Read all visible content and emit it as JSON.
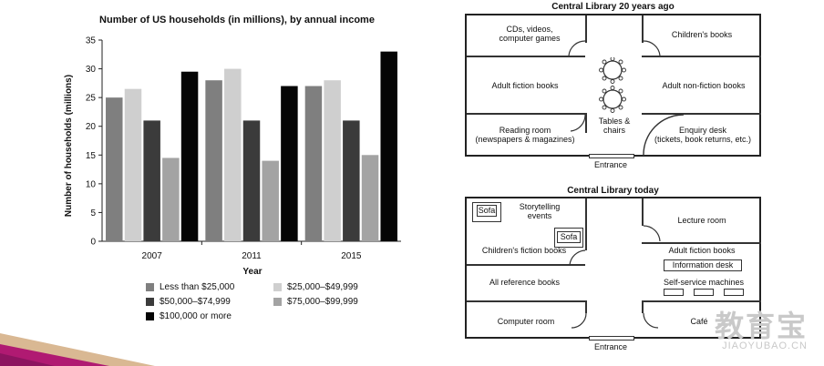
{
  "chart_data": {
    "type": "bar",
    "title": "Number of US households (in millions), by annual income",
    "xlabel": "Year",
    "ylabel": "Number of households (millions)",
    "ylim": [
      0,
      35
    ],
    "yticks": [
      0,
      5,
      10,
      15,
      20,
      25,
      30,
      35
    ],
    "categories": [
      "2007",
      "2011",
      "2015"
    ],
    "legend_position": "bottom",
    "grid": false,
    "series": [
      {
        "name": "Less than $25,000",
        "color": "#7f7f7f",
        "values": [
          25,
          28,
          27
        ]
      },
      {
        "name": "$25,000–$49,999",
        "color": "#cfcfcf",
        "values": [
          26.5,
          30,
          28
        ]
      },
      {
        "name": "$50,000–$74,999",
        "color": "#3b3b3b",
        "values": [
          21,
          21,
          21
        ]
      },
      {
        "name": "$75,000–$99,999",
        "color": "#a3a3a3",
        "values": [
          14.5,
          14,
          15
        ]
      },
      {
        "name": "$100,000 or more",
        "color": "#050505",
        "values": [
          29.5,
          27,
          33
        ]
      }
    ]
  },
  "plans": {
    "past": {
      "title": "Central Library 20 years ago",
      "rooms": {
        "cds": "CDs, videos,\ncomputer games",
        "childrens": "Children's books",
        "adult_fiction": "Adult fiction books",
        "adult_nonfiction": "Adult non-fiction books",
        "reading": "Reading room\n(newspapers & magazines)",
        "tables": "Tables &\nchairs",
        "enquiry": "Enquiry desk\n(tickets, book returns, etc.)"
      },
      "entrance": "Entrance"
    },
    "today": {
      "title": "Central Library today",
      "rooms": {
        "sofa1": "Sofa",
        "storytelling": "Storytelling\nevents",
        "sofa2": "Sofa",
        "childrens_fiction": "Children's fiction books",
        "reference": "All reference books",
        "computer": "Computer room",
        "lecture": "Lecture room",
        "adult_fiction": "Adult fiction books",
        "info_desk": "Information desk",
        "self_service": "Self-service machines",
        "cafe": "Café"
      },
      "entrance": "Entrance"
    }
  },
  "watermark": {
    "cn": "教育宝",
    "en": "JIAOYUBAO.CN"
  }
}
